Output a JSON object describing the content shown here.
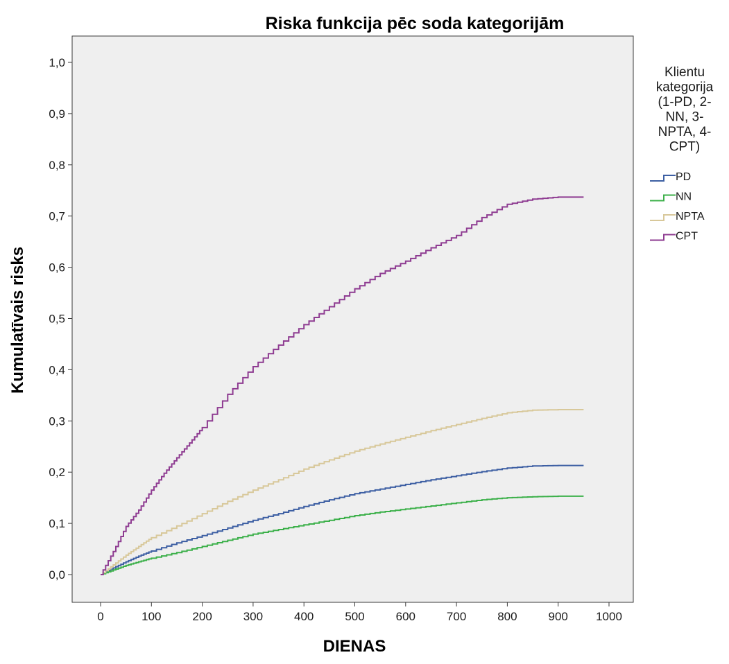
{
  "chart_data": {
    "type": "line",
    "title": "Riska funkcija pēc soda kategorijām",
    "xlabel": "DIENAS",
    "ylabel": "Kumulatīvais risks",
    "xlim": [
      0,
      1000
    ],
    "ylim": [
      0,
      1.0
    ],
    "x_ticks": [
      0,
      100,
      200,
      300,
      400,
      500,
      600,
      700,
      800,
      900,
      1000
    ],
    "x_tick_labels": [
      "0",
      "100",
      "200",
      "300",
      "400",
      "500",
      "600",
      "700",
      "800",
      "900",
      "1000"
    ],
    "y_ticks": [
      0,
      0.1,
      0.2,
      0.3,
      0.4,
      0.5,
      0.6,
      0.7,
      0.8,
      0.9,
      1.0
    ],
    "y_tick_labels": [
      "0,0",
      "0,1",
      "0,2",
      "0,3",
      "0,4",
      "0,5",
      "0,6",
      "0,7",
      "0,8",
      "0,9",
      "1,0"
    ],
    "grid": false,
    "step": true,
    "plot_background": "#efefef",
    "legend": {
      "position": "right",
      "title_lines": [
        "Klientu",
        "kategorija",
        "(1-PD, 2-",
        "NN, 3-",
        "NPTA, 4-",
        "CPT)"
      ]
    },
    "series": [
      {
        "name": "PD",
        "color": "#3d5fa3",
        "x": [
          0,
          25,
          50,
          75,
          100,
          150,
          200,
          250,
          300,
          350,
          400,
          450,
          500,
          550,
          600,
          650,
          700,
          750,
          800,
          850,
          900,
          950
        ],
        "y": [
          0.0,
          0.013,
          0.025,
          0.036,
          0.046,
          0.062,
          0.076,
          0.091,
          0.106,
          0.119,
          0.133,
          0.146,
          0.158,
          0.167,
          0.176,
          0.185,
          0.193,
          0.201,
          0.208,
          0.212,
          0.213,
          0.213
        ]
      },
      {
        "name": "NN",
        "color": "#3cb04a",
        "x": [
          0,
          25,
          50,
          75,
          100,
          150,
          200,
          250,
          300,
          350,
          400,
          450,
          500,
          550,
          600,
          650,
          700,
          750,
          800,
          850,
          900,
          950
        ],
        "y": [
          0.0,
          0.009,
          0.018,
          0.025,
          0.032,
          0.043,
          0.055,
          0.067,
          0.079,
          0.088,
          0.097,
          0.106,
          0.115,
          0.122,
          0.128,
          0.134,
          0.14,
          0.146,
          0.15,
          0.152,
          0.153,
          0.153
        ]
      },
      {
        "name": "NPTA",
        "color": "#d8c89a",
        "x": [
          0,
          25,
          50,
          75,
          100,
          150,
          200,
          250,
          300,
          350,
          400,
          450,
          500,
          550,
          600,
          650,
          700,
          750,
          800,
          850,
          900,
          950
        ],
        "y": [
          0.0,
          0.019,
          0.038,
          0.055,
          0.072,
          0.095,
          0.119,
          0.143,
          0.165,
          0.185,
          0.206,
          0.224,
          0.241,
          0.255,
          0.268,
          0.281,
          0.293,
          0.305,
          0.316,
          0.321,
          0.322,
          0.322
        ]
      },
      {
        "name": "CPT",
        "color": "#8e3b91",
        "x": [
          0,
          25,
          50,
          75,
          100,
          125,
          150,
          175,
          200,
          250,
          300,
          350,
          400,
          450,
          500,
          550,
          600,
          650,
          700,
          750,
          800,
          850,
          900,
          950
        ],
        "y": [
          0.0,
          0.045,
          0.094,
          0.126,
          0.165,
          0.198,
          0.228,
          0.257,
          0.287,
          0.352,
          0.406,
          0.448,
          0.488,
          0.523,
          0.558,
          0.588,
          0.612,
          0.638,
          0.662,
          0.697,
          0.723,
          0.733,
          0.737,
          0.737
        ]
      }
    ]
  }
}
